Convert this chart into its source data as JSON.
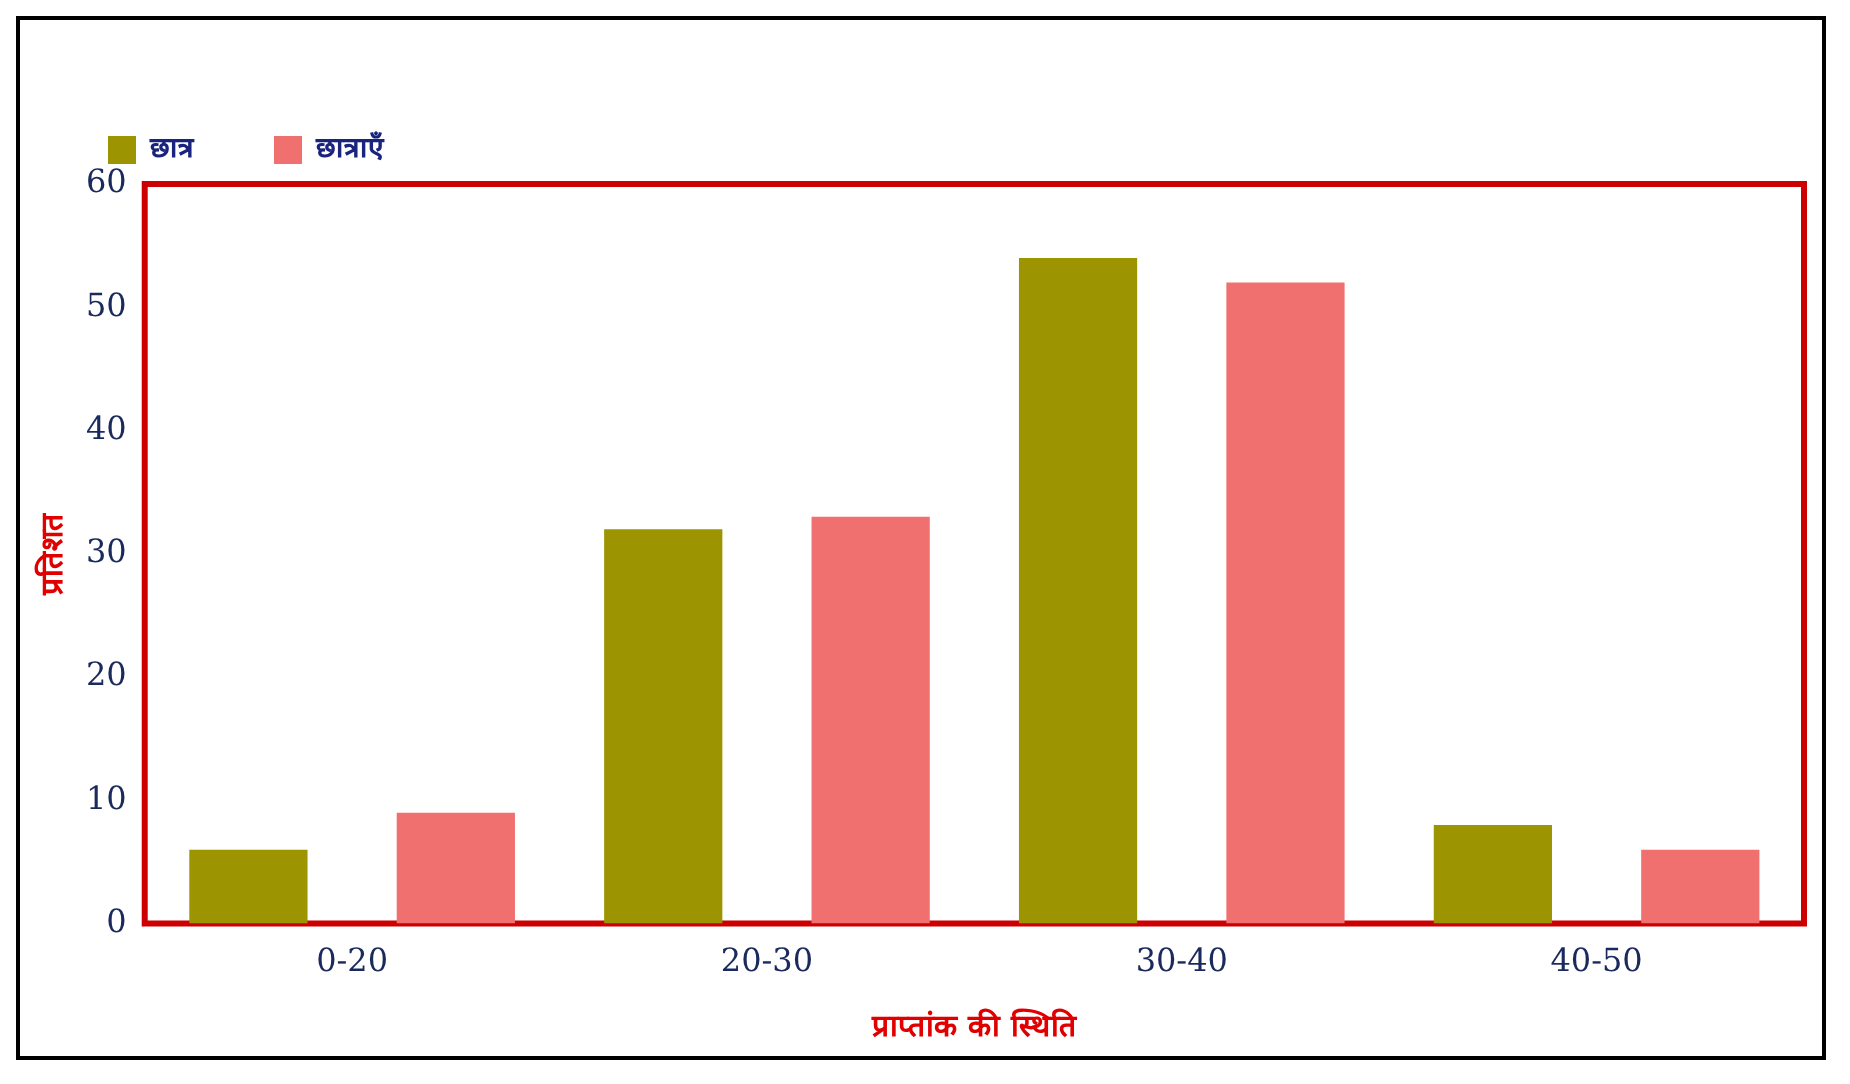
{
  "chart_data": {
    "type": "bar",
    "xlabel": "प्राप्तांक की स्थिति",
    "ylabel": "प्रतिशत",
    "categories": [
      "0-20",
      "20-30",
      "30-40",
      "40-50"
    ],
    "series": [
      {
        "name": "छात्र",
        "color": "#9c9400",
        "values": [
          6,
          32,
          54,
          8
        ]
      },
      {
        "name": "छात्राएँ",
        "color": "#f07070",
        "values": [
          9,
          33,
          52,
          6
        ]
      }
    ],
    "ylim": [
      0,
      60
    ],
    "yticks": [
      0,
      10,
      20,
      30,
      40,
      50,
      60
    ],
    "grid": false,
    "legend": "top left"
  }
}
